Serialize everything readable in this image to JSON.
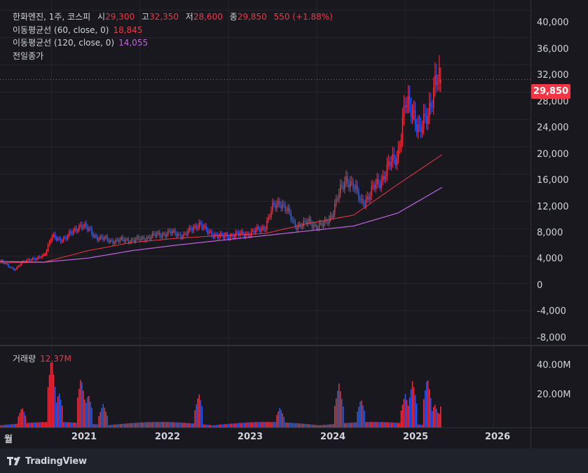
{
  "legend": {
    "symbol": "한화엔진, 1주, 코스피",
    "open_label": "시",
    "open_value": "29,300",
    "high_label": "고",
    "high_value": "32,350",
    "low_label": "저",
    "low_value": "28,600",
    "close_label": "종",
    "close_value": "29,850",
    "change": "550 (+1.88%)",
    "ma60_label": "이동평균선 (60, close, 0)",
    "ma60_value": "18,845",
    "ma120_label": "이동평균선 (120, close, 0)",
    "ma120_value": "14,055",
    "prev_close_label": "전일종가"
  },
  "volume_legend": {
    "label": "거래량",
    "value": "12.37M"
  },
  "price_axis": [
    "40,000",
    "36,000",
    "32,000",
    "28,000",
    "24,000",
    "20,000",
    "16,000",
    "12,000",
    "8,000",
    "4,000",
    "0",
    "-4,000",
    "-8,000"
  ],
  "volume_axis": [
    "40.00M",
    "20.00M"
  ],
  "current_price_tag": "29,850",
  "time_axis": [
    "월",
    "2021",
    "2022",
    "2023",
    "2024",
    "2025",
    "2026"
  ],
  "brand": "TradingView",
  "colors": {
    "up": "#f23645",
    "down": "#2962ff",
    "ma60": "#f23645",
    "ma120": "#c264e0",
    "background": "#18181e"
  },
  "icons": {
    "brand_logo": "tradingview-logo-icon"
  },
  "chart_data": {
    "type": "candlestick",
    "interval": "1W",
    "y_range": [
      -9000,
      41500
    ],
    "volume_range": [
      0,
      48000000
    ],
    "x_start": "2020-06",
    "x_end": "2026-06",
    "last_close": 29850,
    "previous_close": 29300,
    "price_anchors": [
      [
        "2020-06",
        3300
      ],
      [
        "2020-07",
        2600
      ],
      [
        "2020-08",
        2000
      ],
      [
        "2020-09",
        3000
      ],
      [
        "2020-10",
        3600
      ],
      [
        "2020-11",
        3500
      ],
      [
        "2020-12",
        4200
      ],
      [
        "2021-01",
        6800
      ],
      [
        "2021-02",
        6300
      ],
      [
        "2021-03",
        6800
      ],
      [
        "2021-04",
        7500
      ],
      [
        "2021-05",
        8700
      ],
      [
        "2021-06",
        7800
      ],
      [
        "2021-07",
        6800
      ],
      [
        "2021-08",
        6500
      ],
      [
        "2021-09",
        6200
      ],
      [
        "2021-11",
        6300
      ],
      [
        "2022-01",
        6400
      ],
      [
        "2022-03",
        7000
      ],
      [
        "2022-05",
        7400
      ],
      [
        "2022-07",
        7000
      ],
      [
        "2022-09",
        8800
      ],
      [
        "2022-10",
        7600
      ],
      [
        "2022-12",
        6800
      ],
      [
        "2023-02",
        7100
      ],
      [
        "2023-04",
        7300
      ],
      [
        "2023-06",
        8300
      ],
      [
        "2023-07",
        11000
      ],
      [
        "2023-08",
        12000
      ],
      [
        "2023-09",
        10500
      ],
      [
        "2023-10",
        8500
      ],
      [
        "2023-11",
        8500
      ],
      [
        "2023-12",
        9000
      ],
      [
        "2024-01",
        8300
      ],
      [
        "2024-02",
        8600
      ],
      [
        "2024-03",
        10000
      ],
      [
        "2024-04",
        13000
      ],
      [
        "2024-05",
        15500
      ],
      [
        "2024-06",
        14000
      ],
      [
        "2024-07",
        12000
      ],
      [
        "2024-08",
        12500
      ],
      [
        "2024-09",
        14500
      ],
      [
        "2024-10",
        15500
      ],
      [
        "2024-11",
        17500
      ],
      [
        "2024-12",
        19000
      ],
      [
        "2025-01",
        26000
      ],
      [
        "2025-02",
        25500
      ],
      [
        "2025-03",
        22000
      ],
      [
        "2025-04",
        24500
      ],
      [
        "2025-05",
        29500
      ],
      [
        "2025-06",
        29850
      ]
    ],
    "ma60_anchors": [
      [
        "2020-06",
        3000
      ],
      [
        "2020-12",
        3100
      ],
      [
        "2021-06",
        4800
      ],
      [
        "2021-12",
        6000
      ],
      [
        "2022-06",
        6600
      ],
      [
        "2022-12",
        7000
      ],
      [
        "2023-06",
        7300
      ],
      [
        "2023-12",
        8800
      ],
      [
        "2024-06",
        10000
      ],
      [
        "2024-12",
        14500
      ],
      [
        "2025-06",
        18845
      ]
    ],
    "ma120_anchors": [
      [
        "2020-06",
        3200
      ],
      [
        "2020-12",
        3100
      ],
      [
        "2021-06",
        3700
      ],
      [
        "2021-12",
        4800
      ],
      [
        "2022-06",
        5600
      ],
      [
        "2022-12",
        6300
      ],
      [
        "2023-06",
        7000
      ],
      [
        "2023-12",
        7700
      ],
      [
        "2024-06",
        8400
      ],
      [
        "2024-12",
        10300
      ],
      [
        "2025-06",
        14055
      ]
    ],
    "volume_peaks": [
      [
        "2020-09",
        12000000
      ],
      [
        "2021-01",
        42000000
      ],
      [
        "2021-02",
        21000000
      ],
      [
        "2021-05",
        30000000
      ],
      [
        "2021-06",
        20000000
      ],
      [
        "2021-08",
        14000000
      ],
      [
        "2022-09",
        20000000
      ],
      [
        "2023-08",
        12000000
      ],
      [
        "2024-04",
        26000000
      ],
      [
        "2024-07",
        17000000
      ],
      [
        "2025-01",
        20000000
      ],
      [
        "2025-02",
        28000000
      ],
      [
        "2025-04",
        30000000
      ],
      [
        "2025-05",
        14000000
      ],
      [
        "2025-06",
        12370000
      ]
    ],
    "volume_baseline": 2500000
  }
}
